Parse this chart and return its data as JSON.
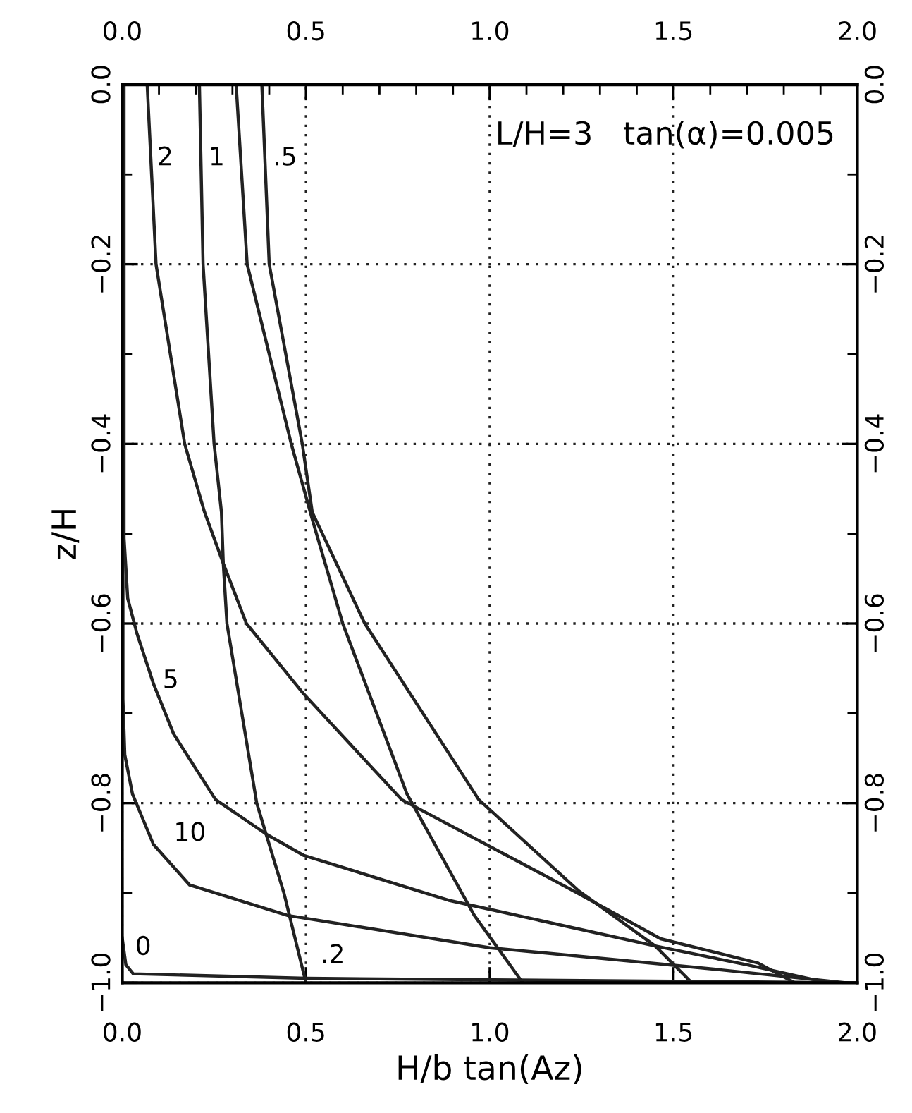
{
  "chart_data": {
    "type": "line",
    "xlabel": "H/b tan(Az)",
    "ylabel": "z/H",
    "annotations": [
      "L/H=3   tan(α)=0.005"
    ],
    "series": [
      {
        "name": ".2",
        "color": "#222222",
        "x": [
          0.21,
          0.22,
          0.25,
          0.27,
          0.275,
          0.285,
          0.366,
          0.44,
          0.5
        ],
        "values": [
          0,
          -0.2,
          -0.4,
          -0.476,
          -0.533,
          -0.6,
          -0.8,
          -0.9,
          -1.0
        ]
      },
      {
        "name": "1",
        "color": "#222222",
        "x": [
          0.31,
          0.34,
          0.46,
          0.52,
          0.6,
          0.775,
          0.958,
          1.09
        ],
        "values": [
          0,
          -0.2,
          -0.4,
          -0.488,
          -0.6,
          -0.79,
          -0.925,
          -1.0
        ]
      },
      {
        "name": ".5",
        "color": "#222222",
        "x": [
          0.38,
          0.4,
          0.49,
          0.517,
          0.66,
          0.97,
          1.24,
          1.45,
          1.55
        ],
        "values": [
          0,
          -0.2,
          -0.4,
          -0.476,
          -0.6,
          -0.796,
          -0.897,
          -0.959,
          -1.0
        ]
      },
      {
        "name": "2",
        "color": "#222222",
        "x": [
          0.068,
          0.092,
          0.17,
          0.224,
          0.275,
          0.338,
          0.493,
          0.76,
          1.225,
          1.465,
          1.73,
          1.83
        ],
        "values": [
          0,
          -0.2,
          -0.4,
          -0.476,
          -0.533,
          -0.6,
          -0.678,
          -0.796,
          -0.897,
          -0.951,
          -0.978,
          -1.0
        ]
      },
      {
        "name": "5",
        "color": "#222222",
        "x": [
          0.005,
          0.005,
          0.015,
          0.04,
          0.085,
          0.14,
          0.254,
          0.394,
          0.493,
          0.887,
          1.45,
          1.7,
          1.92
        ],
        "values": [
          0,
          -0.505,
          -0.572,
          -0.611,
          -0.667,
          -0.723,
          -0.796,
          -0.835,
          -0.858,
          -0.908,
          -0.959,
          -0.98,
          -1.0
        ]
      },
      {
        "name": "10",
        "color": "#222222",
        "x": [
          0.002,
          0.002,
          0.007,
          0.028,
          0.085,
          0.183,
          0.45,
          1.0,
          1.59,
          1.97
        ],
        "values": [
          0,
          -0.684,
          -0.746,
          -0.79,
          -0.846,
          -0.891,
          -0.925,
          -0.961,
          -0.984,
          -1.0
        ]
      },
      {
        "name": "0",
        "color": "#222222",
        "x": [
          0.0,
          0.01,
          0.03,
          0.5,
          2.0
        ],
        "values": [
          -0.95,
          -0.98,
          -0.99,
          -0.995,
          -1.0
        ]
      }
    ],
    "xlim": [
      0,
      2
    ],
    "ylim": [
      -1,
      0
    ],
    "xticks": [
      {
        "value": 0,
        "label": "0.0"
      },
      {
        "value": 0.5,
        "label": "0.5"
      },
      {
        "value": 1,
        "label": "1.0"
      },
      {
        "value": 1.5,
        "label": "1.5"
      },
      {
        "value": 2,
        "label": "2.0"
      }
    ],
    "yticks": [
      {
        "value": -1,
        "label": "−1.0"
      },
      {
        "value": -0.8,
        "label": "−0.8"
      },
      {
        "value": -0.6,
        "label": "−0.6"
      },
      {
        "value": -0.4,
        "label": "−0.4"
      },
      {
        "value": -0.2,
        "label": "−0.2"
      },
      {
        "value": 0,
        "label": "0.0"
      }
    ],
    "x2lim": [
      0,
      2
    ],
    "x2ticks": [
      {
        "value": 0,
        "label": "0.0"
      },
      {
        "value": 0.5,
        "label": "0.5"
      },
      {
        "value": 1,
        "label": "1.0"
      },
      {
        "value": 1.5,
        "label": "1.5"
      },
      {
        "value": 2,
        "label": "2.0"
      }
    ],
    "y2lim": [
      -1,
      0
    ],
    "y2ticks": [
      {
        "value": -1,
        "label": "−1.0"
      },
      {
        "value": -0.8,
        "label": "−0.8"
      },
      {
        "value": -0.6,
        "label": "−0.6"
      },
      {
        "value": -0.4,
        "label": "−0.4"
      },
      {
        "value": -0.2,
        "label": "−0.2"
      },
      {
        "value": 0,
        "label": "0.0"
      }
    ],
    "grid": true,
    "line_style": "solid",
    "marker": "none"
  }
}
